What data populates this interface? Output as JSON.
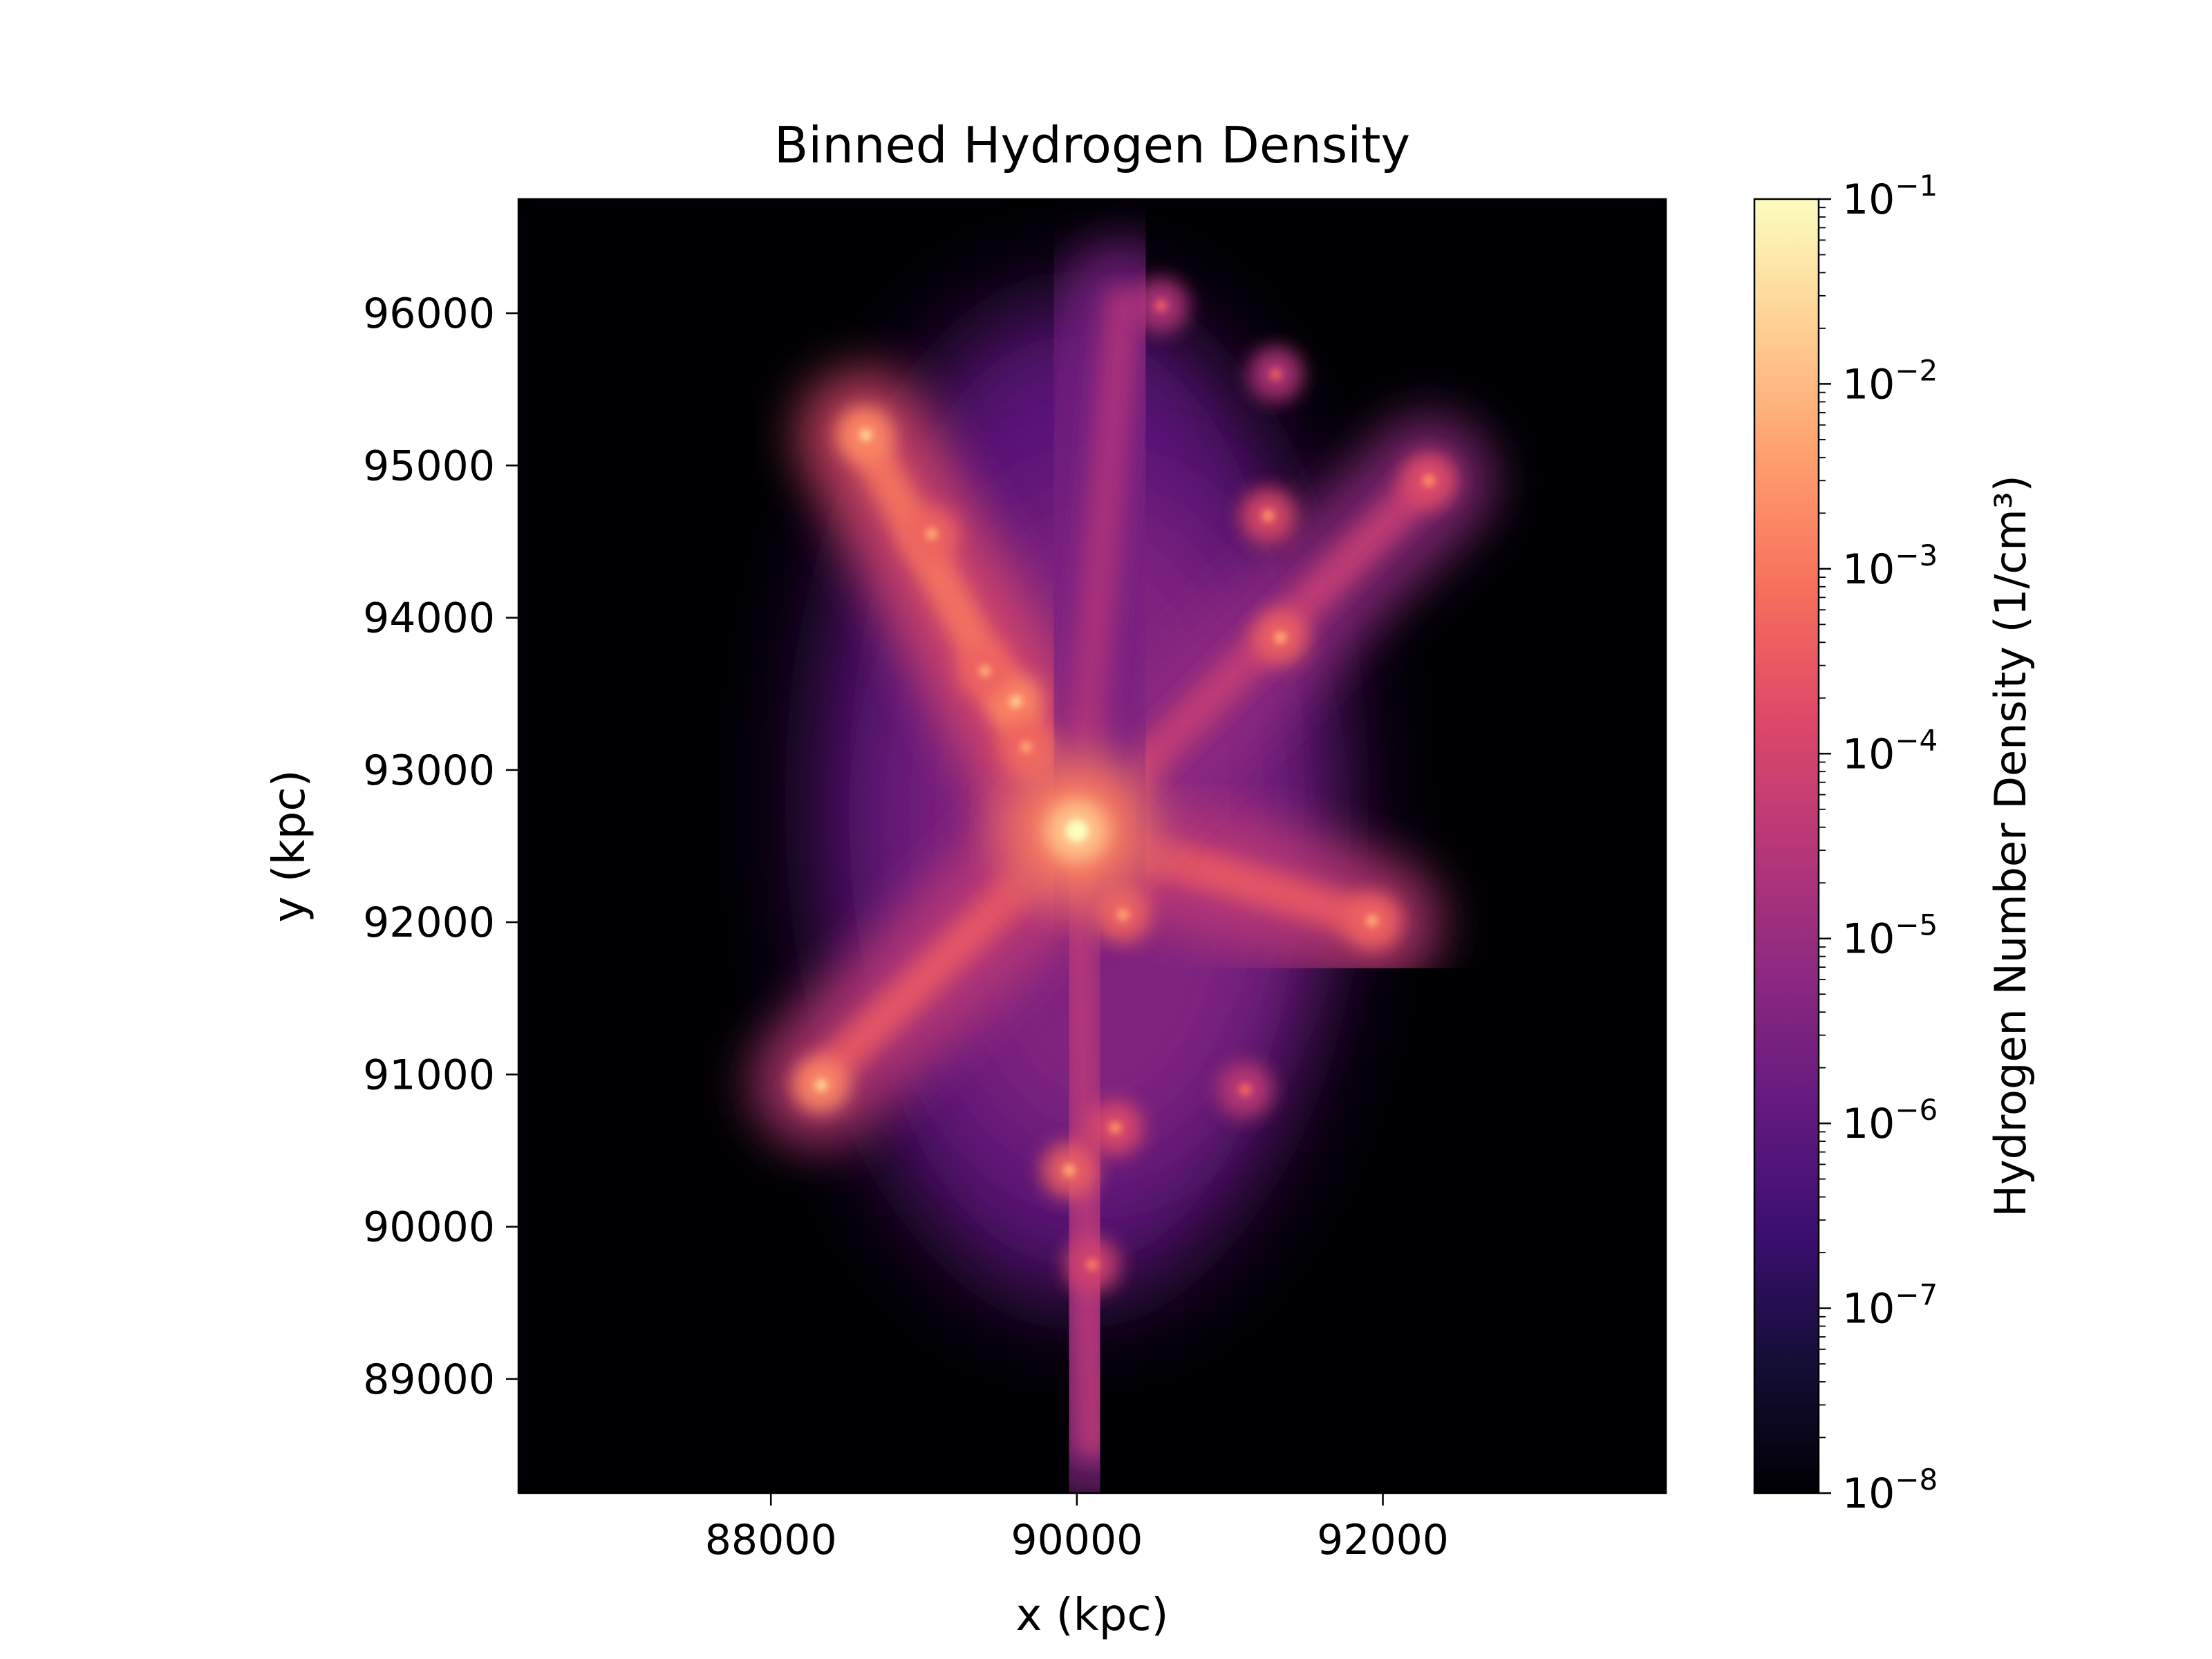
{
  "chart_data": {
    "type": "heatmap",
    "title": "Binned Hydrogen Density",
    "xlabel": "x (kpc)",
    "ylabel": "y (kpc)",
    "xlim": [
      86350,
      93850
    ],
    "ylim": [
      88250,
      96750
    ],
    "x_ticks": [
      88000,
      90000,
      92000
    ],
    "y_ticks": [
      89000,
      90000,
      91000,
      92000,
      93000,
      94000,
      95000,
      96000
    ],
    "x_tick_labels": [
      "88000",
      "90000",
      "92000"
    ],
    "y_tick_labels": [
      "89000",
      "90000",
      "91000",
      "92000",
      "93000",
      "94000",
      "95000",
      "96000"
    ],
    "colormap": "magma",
    "background_color": "#000004",
    "colorbar": {
      "label": "Hydrogen Number Density (1/cm³)",
      "scale": "log",
      "range": [
        1e-08,
        0.1
      ],
      "tick_values": [
        1e-08,
        1e-07,
        1e-06,
        1e-05,
        0.0001,
        0.001,
        0.01,
        0.1
      ],
      "tick_exponents": [
        "−8",
        "−7",
        "−6",
        "−5",
        "−4",
        "−3",
        "−2",
        "−1"
      ],
      "tick_base": "10"
    },
    "structure": {
      "central_peak": {
        "x": 90000,
        "y": 92600,
        "density": 0.1
      },
      "filaments": [
        {
          "from": [
            88600,
            95200
          ],
          "to": [
            90000,
            92600
          ],
          "density": 0.001
        },
        {
          "from": [
            88300,
            90950
          ],
          "to": [
            90000,
            92600
          ],
          "density": 0.0003
        },
        {
          "from": [
            91950,
            92000
          ],
          "to": [
            90000,
            92600
          ],
          "density": 0.0003
        },
        {
          "from": [
            92300,
            94900
          ],
          "to": [
            90000,
            92600
          ],
          "density": 5e-05
        },
        {
          "from": [
            90300,
            96050
          ],
          "to": [
            90000,
            92600
          ],
          "density": 2e-05
        },
        {
          "from": [
            90100,
            88600
          ],
          "to": [
            90000,
            92600
          ],
          "density": 3e-05
        }
      ],
      "clumps": [
        {
          "x": 88620,
          "y": 95200,
          "density": 0.02
        },
        {
          "x": 88330,
          "y": 90930,
          "density": 0.02
        },
        {
          "x": 91930,
          "y": 92010,
          "density": 0.005
        },
        {
          "x": 92300,
          "y": 94900,
          "density": 0.002
        },
        {
          "x": 91330,
          "y": 93870,
          "density": 0.005
        },
        {
          "x": 91250,
          "y": 94670,
          "density": 0.002
        },
        {
          "x": 89600,
          "y": 93450,
          "density": 0.02
        },
        {
          "x": 89400,
          "y": 93650,
          "density": 0.005
        },
        {
          "x": 89050,
          "y": 94550,
          "density": 0.005
        },
        {
          "x": 89950,
          "y": 90370,
          "density": 0.005
        },
        {
          "x": 90250,
          "y": 90650,
          "density": 0.002
        },
        {
          "x": 90300,
          "y": 92050,
          "density": 0.005
        },
        {
          "x": 90100,
          "y": 89750,
          "density": 0.001
        },
        {
          "x": 89670,
          "y": 93150,
          "density": 0.005
        },
        {
          "x": 91100,
          "y": 90900,
          "density": 0.0005
        },
        {
          "x": 90550,
          "y": 96050,
          "density": 0.0003
        },
        {
          "x": 91300,
          "y": 95600,
          "density": 0.0003
        }
      ]
    }
  }
}
